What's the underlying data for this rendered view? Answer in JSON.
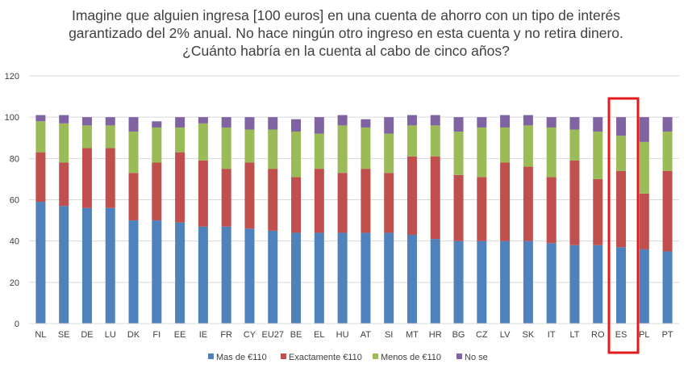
{
  "chart_data": {
    "type": "bar",
    "stacked": true,
    "title_lines": [
      "Imagine que alguien ingresa [100 euros] en una cuenta de ahorro con un tipo de interés",
      "garantizado del 2% anual. No hace ningún otro ingreso en esta cuenta y no retira dinero.",
      "¿Cuánto habría en la cuenta al cabo de cinco años?"
    ],
    "categories": [
      "NL",
      "SE",
      "DE",
      "LU",
      "DK",
      "FI",
      "EE",
      "IE",
      "FR",
      "CY",
      "EU27",
      "BE",
      "EL",
      "HU",
      "AT",
      "SI",
      "MT",
      "HR",
      "BG",
      "CZ",
      "LV",
      "SK",
      "IT",
      "LT",
      "RO",
      "ES",
      "PL",
      "PT"
    ],
    "series": [
      {
        "name": "Mas de €110",
        "color": "#4F81BD",
        "values": [
          59,
          57,
          56,
          56,
          50,
          50,
          49,
          47,
          47,
          46,
          45,
          44,
          44,
          44,
          44,
          44,
          43,
          41,
          40,
          40,
          40,
          40,
          39,
          38,
          38,
          37,
          36,
          35
        ]
      },
      {
        "name": "Exactamente €110",
        "color": "#C0504D",
        "values": [
          24,
          21,
          29,
          29,
          23,
          28,
          34,
          32,
          28,
          32,
          30,
          27,
          31,
          29,
          31,
          29,
          38,
          40,
          32,
          31,
          38,
          36,
          32,
          41,
          32,
          37,
          27,
          39
        ]
      },
      {
        "name": "Menos de €110",
        "color": "#9BBB59",
        "values": [
          15,
          19,
          11,
          11,
          20,
          17,
          12,
          18,
          20,
          16,
          19,
          22,
          17,
          23,
          20,
          19,
          15,
          15,
          21,
          24,
          17,
          20,
          24,
          15,
          23,
          17,
          25,
          19
        ]
      },
      {
        "name": "No se",
        "color": "#8064A2",
        "values": [
          3,
          4,
          4,
          4,
          7,
          3,
          5,
          3,
          5,
          6,
          6,
          6,
          8,
          5,
          4,
          8,
          5,
          5,
          7,
          5,
          6,
          5,
          5,
          6,
          7,
          9,
          12,
          7
        ]
      }
    ],
    "y_ticks": [
      "0",
      "20",
      "40",
      "60",
      "80",
      "100",
      "120"
    ],
    "ylim": [
      0,
      120
    ],
    "gridlines": true,
    "legend_position": "bottom",
    "highlight_category": "ES",
    "highlight_color": "#E31A1C"
  }
}
